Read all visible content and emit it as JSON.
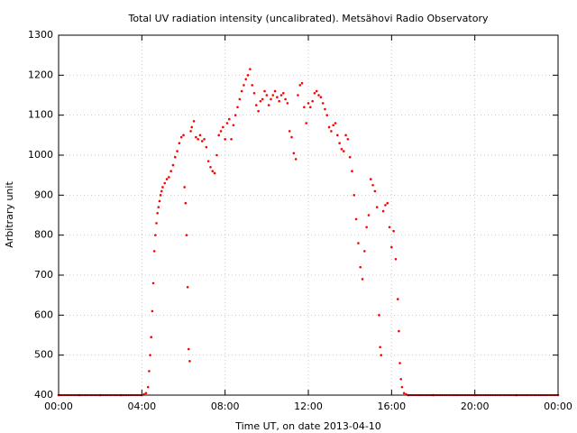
{
  "chart_data": {
    "type": "scatter",
    "title": "Total UV radiation intensity (uncalibrated). Metsähovi Radio Observatory",
    "xlabel": "Time UT, on date 2013-04-10",
    "ylabel": "Arbitrary unit",
    "xlim": [
      0,
      24
    ],
    "ylim": [
      400,
      1300
    ],
    "x_ticks": [
      {
        "value": 0,
        "label": "00:00"
      },
      {
        "value": 4,
        "label": "04:00"
      },
      {
        "value": 8,
        "label": "08:00"
      },
      {
        "value": 12,
        "label": "12:00"
      },
      {
        "value": 16,
        "label": "16:00"
      },
      {
        "value": 20,
        "label": "20:00"
      },
      {
        "value": 24,
        "label": "00:00"
      }
    ],
    "y_ticks": [
      400,
      500,
      600,
      700,
      800,
      900,
      1000,
      1100,
      1200,
      1300
    ],
    "grid": true,
    "marker_color": "#ff0000",
    "series": [
      {
        "points": [
          [
            0.0,
            400
          ],
          [
            1.0,
            400
          ],
          [
            2.0,
            400
          ],
          [
            3.0,
            400
          ],
          [
            4.0,
            400
          ],
          [
            4.2,
            405
          ],
          [
            4.3,
            420
          ],
          [
            4.35,
            460
          ],
          [
            4.4,
            500
          ],
          [
            4.45,
            545
          ],
          [
            4.5,
            610
          ],
          [
            4.55,
            680
          ],
          [
            4.6,
            760
          ],
          [
            4.65,
            800
          ],
          [
            4.7,
            830
          ],
          [
            4.75,
            855
          ],
          [
            4.8,
            870
          ],
          [
            4.85,
            885
          ],
          [
            4.9,
            900
          ],
          [
            4.95,
            910
          ],
          [
            5.0,
            920
          ],
          [
            5.1,
            930
          ],
          [
            5.2,
            940
          ],
          [
            5.3,
            945
          ],
          [
            5.4,
            960
          ],
          [
            5.5,
            975
          ],
          [
            5.6,
            995
          ],
          [
            5.7,
            1010
          ],
          [
            5.8,
            1030
          ],
          [
            5.9,
            1045
          ],
          [
            6.0,
            1050
          ],
          [
            6.05,
            920
          ],
          [
            6.1,
            880
          ],
          [
            6.15,
            800
          ],
          [
            6.2,
            670
          ],
          [
            6.25,
            515
          ],
          [
            6.3,
            485
          ],
          [
            6.35,
            1060
          ],
          [
            6.4,
            1070
          ],
          [
            6.5,
            1085
          ],
          [
            6.6,
            1045
          ],
          [
            6.7,
            1040
          ],
          [
            6.8,
            1050
          ],
          [
            6.9,
            1035
          ],
          [
            7.0,
            1040
          ],
          [
            7.1,
            1020
          ],
          [
            7.2,
            985
          ],
          [
            7.3,
            970
          ],
          [
            7.4,
            960
          ],
          [
            7.5,
            955
          ],
          [
            7.6,
            1000
          ],
          [
            7.7,
            1050
          ],
          [
            7.8,
            1060
          ],
          [
            7.9,
            1070
          ],
          [
            8.0,
            1040
          ],
          [
            8.1,
            1080
          ],
          [
            8.2,
            1090
          ],
          [
            8.3,
            1040
          ],
          [
            8.4,
            1075
          ],
          [
            8.5,
            1100
          ],
          [
            8.6,
            1120
          ],
          [
            8.7,
            1140
          ],
          [
            8.8,
            1160
          ],
          [
            8.9,
            1175
          ],
          [
            9.0,
            1190
          ],
          [
            9.1,
            1200
          ],
          [
            9.2,
            1215
          ],
          [
            9.3,
            1175
          ],
          [
            9.4,
            1155
          ],
          [
            9.5,
            1125
          ],
          [
            9.6,
            1110
          ],
          [
            9.7,
            1135
          ],
          [
            9.8,
            1140
          ],
          [
            9.9,
            1160
          ],
          [
            10.0,
            1150
          ],
          [
            10.1,
            1125
          ],
          [
            10.2,
            1140
          ],
          [
            10.3,
            1150
          ],
          [
            10.4,
            1160
          ],
          [
            10.5,
            1145
          ],
          [
            10.6,
            1135
          ],
          [
            10.7,
            1150
          ],
          [
            10.8,
            1155
          ],
          [
            10.9,
            1140
          ],
          [
            11.0,
            1130
          ],
          [
            11.1,
            1060
          ],
          [
            11.2,
            1045
          ],
          [
            11.3,
            1005
          ],
          [
            11.4,
            990
          ],
          [
            11.5,
            1150
          ],
          [
            11.6,
            1175
          ],
          [
            11.7,
            1180
          ],
          [
            11.8,
            1120
          ],
          [
            11.9,
            1080
          ],
          [
            12.0,
            1130
          ],
          [
            12.1,
            1120
          ],
          [
            12.2,
            1135
          ],
          [
            12.3,
            1155
          ],
          [
            12.4,
            1160
          ],
          [
            12.5,
            1150
          ],
          [
            12.6,
            1145
          ],
          [
            12.7,
            1130
          ],
          [
            12.8,
            1115
          ],
          [
            12.9,
            1100
          ],
          [
            13.0,
            1070
          ],
          [
            13.1,
            1060
          ],
          [
            13.2,
            1075
          ],
          [
            13.3,
            1080
          ],
          [
            13.4,
            1050
          ],
          [
            13.5,
            1030
          ],
          [
            13.6,
            1015
          ],
          [
            13.7,
            1010
          ],
          [
            13.8,
            1050
          ],
          [
            13.9,
            1040
          ],
          [
            14.0,
            995
          ],
          [
            14.1,
            960
          ],
          [
            14.2,
            900
          ],
          [
            14.3,
            840
          ],
          [
            14.4,
            780
          ],
          [
            14.5,
            720
          ],
          [
            14.6,
            690
          ],
          [
            14.7,
            760
          ],
          [
            14.8,
            820
          ],
          [
            14.9,
            850
          ],
          [
            15.0,
            940
          ],
          [
            15.1,
            925
          ],
          [
            15.2,
            910
          ],
          [
            15.3,
            870
          ],
          [
            15.4,
            600
          ],
          [
            15.45,
            520
          ],
          [
            15.5,
            500
          ],
          [
            15.6,
            860
          ],
          [
            15.7,
            875
          ],
          [
            15.8,
            880
          ],
          [
            15.9,
            820
          ],
          [
            16.0,
            770
          ],
          [
            16.1,
            810
          ],
          [
            16.2,
            740
          ],
          [
            16.3,
            640
          ],
          [
            16.35,
            560
          ],
          [
            16.4,
            480
          ],
          [
            16.45,
            440
          ],
          [
            16.5,
            420
          ],
          [
            16.6,
            405
          ],
          [
            16.8,
            400
          ],
          [
            18.0,
            400
          ],
          [
            20.0,
            400
          ],
          [
            22.0,
            400
          ],
          [
            24.0,
            400
          ]
        ]
      }
    ]
  }
}
